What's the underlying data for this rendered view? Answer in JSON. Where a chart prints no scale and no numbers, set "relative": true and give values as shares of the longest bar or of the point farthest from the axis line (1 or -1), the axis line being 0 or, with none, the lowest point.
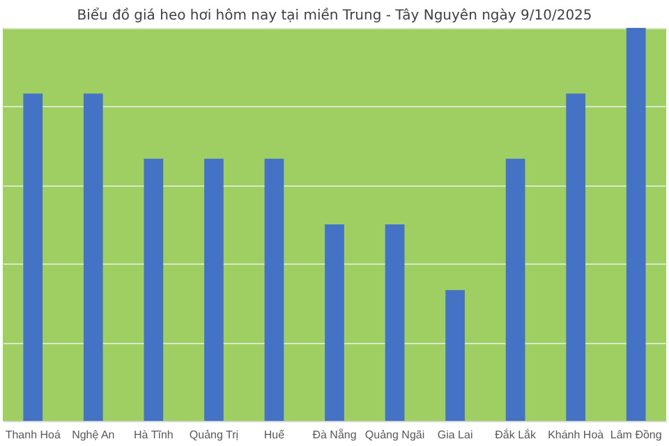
{
  "chart_data": {
    "type": "bar",
    "title": "Biểu đồ giá heo hơi hôm nay tại miền Trung - Tây Nguyên ngày 9/10/2025",
    "categories": [
      "Thanh Hoá",
      "Nghệ An",
      "Hà Tĩnh",
      "Quảng Trị",
      "Huế",
      "Đà Nẵng",
      "Quảng Ngãi",
      "Gia Lai",
      "Đắk Lắk",
      "Khánh Hoà",
      "Lâm Đồng"
    ],
    "values": [
      0.833,
      0.833,
      0.667,
      0.667,
      0.667,
      0.5,
      0.5,
      0.333,
      0.667,
      0.833,
      1
    ],
    "color": "#4472c4",
    "relative": true,
    "grid": true
  }
}
